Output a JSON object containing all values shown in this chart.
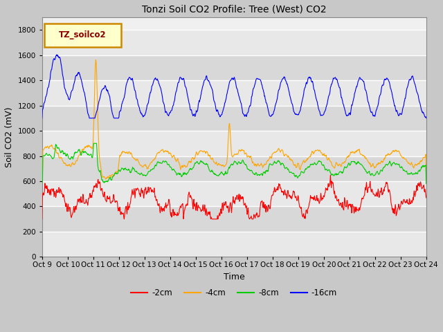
{
  "title": "Tonzi Soil CO2 Profile: Tree (West) CO2",
  "xlabel": "Time",
  "ylabel": "Soil CO2 (mV)",
  "ylim": [
    0,
    1900
  ],
  "yticks": [
    0,
    200,
    400,
    600,
    800,
    1000,
    1200,
    1400,
    1600,
    1800
  ],
  "legend_label": "TZ_soilco2",
  "legend_box_color": "#ffffcc",
  "legend_box_edge": "#cc8800",
  "fig_bg": "#d4d4d4",
  "plot_bg_light": "#f0f0f0",
  "plot_bg_dark": "#d8d8d8",
  "line_colors": {
    "neg2": "#ff0000",
    "neg4": "#ffa500",
    "neg8": "#00cc00",
    "neg16": "#0000ff"
  },
  "line_labels": [
    "-2cm",
    "-4cm",
    "-8cm",
    "-16cm"
  ],
  "x_tick_labels": [
    "Oct 9",
    "Oct 10",
    "Oct 11",
    "Oct 12",
    "Oct 13",
    "Oct 14",
    "Oct 15",
    "Oct 16",
    "Oct 17",
    "Oct 18",
    "Oct 19",
    "Oct 20",
    "Oct 21",
    "Oct 22",
    "Oct 23",
    "Oct 24"
  ],
  "n_points": 960
}
